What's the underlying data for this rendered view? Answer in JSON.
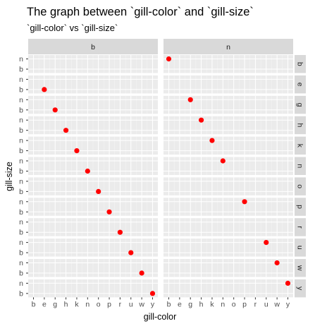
{
  "chart_data": {
    "type": "scatter",
    "title": "The graph between `gill-color` and `gill-size`",
    "subtitle": "`gill-color` vs `gill-size`",
    "xlabel": "gill-color",
    "ylabel": "gill-size",
    "x_categories": [
      "b",
      "e",
      "g",
      "h",
      "k",
      "n",
      "o",
      "p",
      "r",
      "u",
      "w",
      "y"
    ],
    "y_categories": [
      "b",
      "n"
    ],
    "facet_cols": [
      "b",
      "n"
    ],
    "facet_rows": [
      "b",
      "e",
      "g",
      "h",
      "k",
      "n",
      "o",
      "p",
      "r",
      "u",
      "w",
      "y"
    ],
    "point_color": "#ff0000",
    "panel_background": "#ebebeb",
    "strip_background": "#d9d9d9",
    "grid": true,
    "points": [
      {
        "facet_col": "n",
        "facet_row": "b",
        "x": "b",
        "y": "n"
      },
      {
        "facet_col": "b",
        "facet_row": "e",
        "x": "e",
        "y": "b"
      },
      {
        "facet_col": "b",
        "facet_row": "g",
        "x": "g",
        "y": "b"
      },
      {
        "facet_col": "n",
        "facet_row": "g",
        "x": "g",
        "y": "n"
      },
      {
        "facet_col": "b",
        "facet_row": "h",
        "x": "h",
        "y": "b"
      },
      {
        "facet_col": "n",
        "facet_row": "h",
        "x": "h",
        "y": "n"
      },
      {
        "facet_col": "b",
        "facet_row": "k",
        "x": "k",
        "y": "b"
      },
      {
        "facet_col": "n",
        "facet_row": "k",
        "x": "k",
        "y": "n"
      },
      {
        "facet_col": "b",
        "facet_row": "n",
        "x": "n",
        "y": "b"
      },
      {
        "facet_col": "n",
        "facet_row": "n",
        "x": "n",
        "y": "n"
      },
      {
        "facet_col": "b",
        "facet_row": "o",
        "x": "o",
        "y": "b"
      },
      {
        "facet_col": "b",
        "facet_row": "p",
        "x": "p",
        "y": "b"
      },
      {
        "facet_col": "n",
        "facet_row": "p",
        "x": "p",
        "y": "n"
      },
      {
        "facet_col": "b",
        "facet_row": "r",
        "x": "r",
        "y": "b"
      },
      {
        "facet_col": "b",
        "facet_row": "u",
        "x": "u",
        "y": "b"
      },
      {
        "facet_col": "n",
        "facet_row": "u",
        "x": "u",
        "y": "n"
      },
      {
        "facet_col": "b",
        "facet_row": "w",
        "x": "w",
        "y": "b"
      },
      {
        "facet_col": "n",
        "facet_row": "w",
        "x": "w",
        "y": "n"
      },
      {
        "facet_col": "b",
        "facet_row": "y",
        "x": "y",
        "y": "b"
      },
      {
        "facet_col": "n",
        "facet_row": "y",
        "x": "y",
        "y": "n"
      }
    ]
  }
}
